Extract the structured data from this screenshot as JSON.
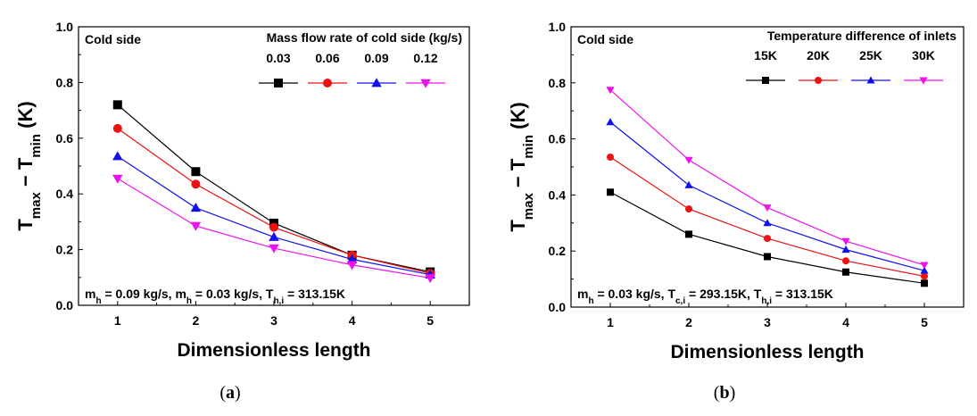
{
  "chart_data": [
    {
      "type": "line",
      "panel_label": "(a)",
      "panel_label_parts": {
        "open": "(",
        "letter": "a",
        "close": ")"
      },
      "xlabel": "Dimensionless length",
      "ylabel": {
        "main_t1": "T",
        "sub_1": "max",
        "dash": " − ",
        "main_t2": "T",
        "sub_2": "min",
        "unit": " (K)"
      },
      "x": [
        1,
        2,
        3,
        4,
        5
      ],
      "x_ticks": [
        "1",
        "2",
        "3",
        "4",
        "5"
      ],
      "xlim": [
        0.5,
        5.5
      ],
      "ylim": [
        0,
        1.0
      ],
      "y_ticks": [
        "0.0",
        "0.2",
        "0.4",
        "0.6",
        "0.8",
        "1.0"
      ],
      "corner_label": "Cold side",
      "legend_title": "Mass flow rate of cold side (kg/s)",
      "annotation": {
        "parts": [
          {
            "t": "m",
            "sub": false
          },
          {
            "t": "h",
            "sub": true
          },
          {
            "t": " = 0.09 kg/s, m",
            "sub": false
          },
          {
            "t": "h",
            "sub": true
          },
          {
            "t": " = 0.03 kg/s, T",
            "sub": false
          },
          {
            "t": "h,i",
            "sub": true
          },
          {
            "t": " = 313.15K",
            "sub": false
          }
        ]
      },
      "series": [
        {
          "name": "0.03",
          "color": "#000000",
          "marker": "square",
          "values": [
            0.72,
            0.48,
            0.295,
            0.18,
            0.12
          ]
        },
        {
          "name": "0.06",
          "color": "#ee1111",
          "marker": "circle",
          "values": [
            0.635,
            0.435,
            0.28,
            0.18,
            0.115
          ]
        },
        {
          "name": "0.09",
          "color": "#1111ee",
          "marker": "triangle",
          "values": [
            0.535,
            0.35,
            0.245,
            0.165,
            0.11
          ]
        },
        {
          "name": "0.12",
          "color": "#ee11ee",
          "marker": "triangle-down",
          "values": [
            0.455,
            0.285,
            0.205,
            0.145,
            0.098
          ]
        }
      ]
    },
    {
      "type": "line",
      "panel_label": "(b)",
      "panel_label_parts": {
        "open": "(",
        "letter": "b",
        "close": ")"
      },
      "xlabel": "Dimensionless length",
      "ylabel": {
        "main_t1": "T",
        "sub_1": "max",
        "dash": " − ",
        "main_t2": "T",
        "sub_2": "min",
        "unit": " (K)"
      },
      "x": [
        1,
        2,
        3,
        4,
        5
      ],
      "x_ticks": [
        "1",
        "2",
        "3",
        "4",
        "5"
      ],
      "xlim": [
        0.5,
        5.5
      ],
      "ylim": [
        0,
        1.0
      ],
      "y_ticks": [
        "0.0",
        "0.2",
        "0.4",
        "0.6",
        "0.8",
        "1.0"
      ],
      "corner_label": "Cold side",
      "legend_title": "Temperature difference of inlets",
      "annotation": {
        "parts": [
          {
            "t": "m",
            "sub": false
          },
          {
            "t": "h",
            "sub": true
          },
          {
            "t": " = 0.03 kg/s, T",
            "sub": false
          },
          {
            "t": "c,i",
            "sub": true
          },
          {
            "t": " = 293.15K, T",
            "sub": false
          },
          {
            "t": "h,i",
            "sub": true
          },
          {
            "t": " = 313.15K",
            "sub": false
          }
        ]
      },
      "series": [
        {
          "name": "15K",
          "color": "#000000",
          "marker": "square",
          "values": [
            0.41,
            0.26,
            0.18,
            0.125,
            0.085
          ]
        },
        {
          "name": "20K",
          "color": "#ee1111",
          "marker": "circle",
          "values": [
            0.535,
            0.35,
            0.245,
            0.165,
            0.11
          ]
        },
        {
          "name": "25K",
          "color": "#1111ee",
          "marker": "triangle",
          "values": [
            0.66,
            0.435,
            0.3,
            0.205,
            0.13
          ]
        },
        {
          "name": "30K",
          "color": "#ee11ee",
          "marker": "triangle-down",
          "values": [
            0.775,
            0.525,
            0.355,
            0.235,
            0.15
          ]
        }
      ]
    }
  ]
}
